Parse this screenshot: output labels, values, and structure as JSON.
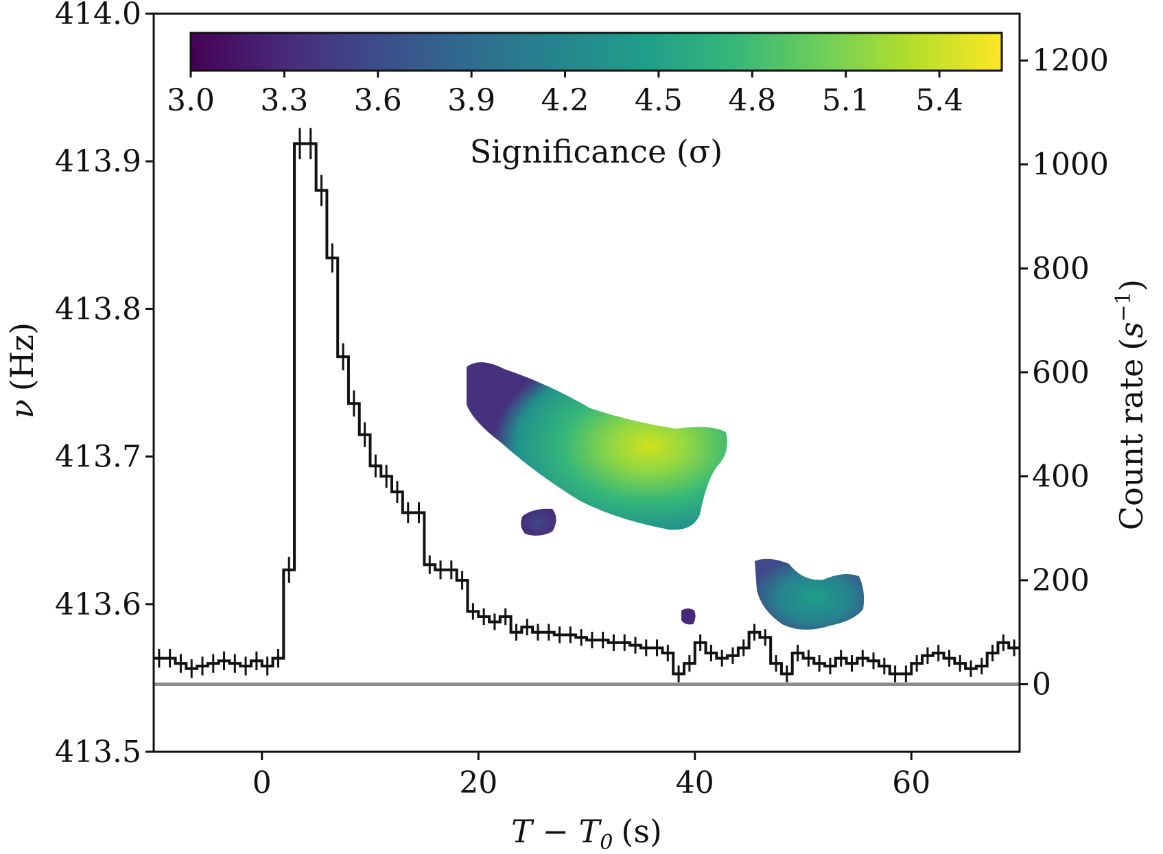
{
  "chart_data": {
    "type": "step-line-with-heatmap",
    "xlabel": "T − T",
    "xlabel_subscript": "0",
    "xlabel_unit": "(s)",
    "ylabel_left_symbol": "ν",
    "ylabel_left_unit": "(Hz)",
    "ylabel_right": "Count rate",
    "ylabel_right_unit_base": "s",
    "ylabel_right_unit_exp": "−1",
    "xlim": [
      -10,
      70
    ],
    "ylim_left": [
      413.5,
      414.0
    ],
    "ylim_right": [
      -130,
      1290
    ],
    "x_ticks": [
      0,
      20,
      40,
      60
    ],
    "x_tick_labels": [
      "0",
      "20",
      "40",
      "60"
    ],
    "y_left_ticks": [
      413.5,
      413.6,
      413.7,
      413.8,
      413.9,
      414.0
    ],
    "y_left_tick_labels": [
      "413.5",
      "413.6",
      "413.7",
      "413.8",
      "413.9",
      "414.0"
    ],
    "y_right_ticks": [
      0,
      200,
      400,
      600,
      800,
      1000,
      1200
    ],
    "y_right_tick_labels": [
      "0",
      "200",
      "400",
      "600",
      "800",
      "1000",
      "1200"
    ],
    "colorbar": {
      "label": "Significance (σ)",
      "range": [
        3.0,
        5.6
      ],
      "ticks": [
        3.0,
        3.3,
        3.6,
        3.9,
        4.2,
        4.5,
        4.8,
        5.1,
        5.4
      ],
      "tick_labels": [
        "3.0",
        "3.3",
        "3.6",
        "3.9",
        "4.2",
        "4.5",
        "4.8",
        "5.1",
        "5.4"
      ],
      "colormap": "viridis",
      "colors": [
        "#440154",
        "#482878",
        "#3e4a89",
        "#31688e",
        "#26828e",
        "#1f9e89",
        "#35b779",
        "#6ece58",
        "#b5de2b",
        "#fde725"
      ]
    },
    "baseline": {
      "value": 0,
      "color": "#8c8c8c"
    },
    "count_rate_series": {
      "name": "Count rate",
      "color": "#111111",
      "bin_width": 1.0,
      "x": [
        -10,
        -9,
        -8,
        -7,
        -6,
        -5,
        -4,
        -3,
        -2,
        -1,
        0,
        1,
        2,
        3,
        4,
        5,
        6,
        7,
        8,
        9,
        10,
        11,
        12,
        13,
        14,
        15,
        16,
        17,
        18,
        19,
        20,
        21,
        22,
        23,
        24,
        25,
        26,
        27,
        28,
        29,
        30,
        31,
        32,
        33,
        34,
        35,
        36,
        37,
        38,
        39,
        40,
        41,
        42,
        43,
        44,
        45,
        46,
        47,
        48,
        49,
        50,
        51,
        52,
        53,
        54,
        55,
        56,
        57,
        58,
        59,
        60,
        61,
        62,
        63,
        64,
        65,
        66,
        67,
        68,
        69
      ],
      "y": [
        50,
        50,
        40,
        30,
        35,
        40,
        45,
        40,
        35,
        45,
        35,
        50,
        220,
        1040,
        1040,
        950,
        820,
        630,
        540,
        480,
        420,
        400,
        370,
        330,
        330,
        230,
        220,
        220,
        200,
        140,
        130,
        120,
        130,
        100,
        110,
        100,
        100,
        95,
        95,
        90,
        85,
        85,
        80,
        80,
        75,
        70,
        70,
        60,
        20,
        40,
        80,
        60,
        50,
        55,
        70,
        100,
        90,
        40,
        20,
        60,
        50,
        40,
        35,
        50,
        40,
        50,
        45,
        35,
        20,
        20,
        40,
        55,
        60,
        50,
        40,
        30,
        35,
        60,
        80,
        70
      ],
      "err": [
        18,
        18,
        18,
        18,
        18,
        18,
        18,
        18,
        18,
        18,
        18,
        18,
        25,
        30,
        30,
        30,
        28,
        26,
        25,
        24,
        22,
        22,
        21,
        20,
        20,
        18,
        18,
        18,
        18,
        16,
        16,
        16,
        16,
        16,
        16,
        16,
        16,
        16,
        16,
        16,
        16,
        16,
        16,
        16,
        16,
        16,
        16,
        16,
        16,
        16,
        16,
        16,
        16,
        16,
        16,
        16,
        16,
        16,
        16,
        16,
        16,
        16,
        16,
        16,
        16,
        16,
        16,
        16,
        16,
        16,
        16,
        16,
        16,
        16,
        16,
        16,
        16,
        16,
        16,
        16
      ]
    },
    "significance_regions": [
      {
        "name": "main-blob",
        "t_range": [
          19.5,
          43
        ],
        "nu_range": [
          413.65,
          413.763
        ],
        "peak_sigma": 5.5
      },
      {
        "name": "small-blob-1",
        "t_range": [
          24.5,
          27
        ],
        "nu_range": [
          413.646,
          413.665
        ],
        "peak_sigma": 3.3
      },
      {
        "name": "lower-right-blob",
        "t_range": [
          45.5,
          57.5
        ],
        "nu_range": [
          413.581,
          413.631
        ],
        "peak_sigma": 4.3
      },
      {
        "name": "tiny-blob",
        "t_range": [
          38.4,
          40.3
        ],
        "nu_range": [
          413.588,
          413.6
        ],
        "peak_sigma": 3.2
      }
    ]
  }
}
